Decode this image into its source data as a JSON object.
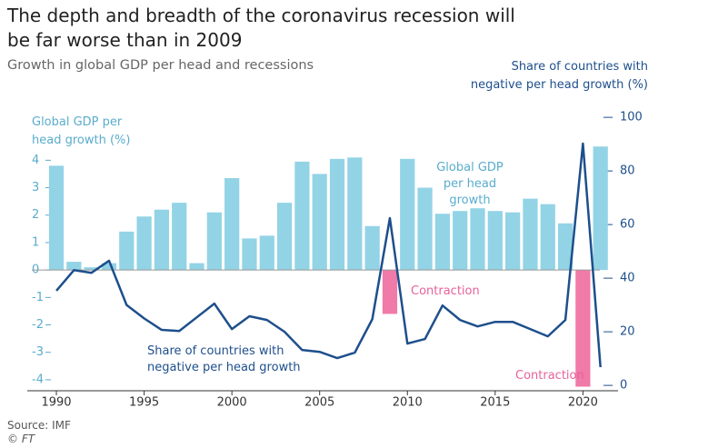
{
  "chart_data": {
    "type": "bar-line",
    "title": "The depth and breadth of the coronavirus recession will be far worse than in 2009",
    "subtitle": "Growth in global GDP per head and recessions",
    "y_axis_label": "Global GDP per head growth (%)",
    "y2_axis_label": "Share of countries with negative per head growth (%)",
    "source": "Source: IMF",
    "credit": "© FT",
    "annotations": [
      "Global GDP per head growth",
      "Contraction",
      "Contraction",
      "Share of countries with negative per head growth"
    ],
    "x": [
      1990,
      1991,
      1992,
      1993,
      1994,
      1995,
      1996,
      1997,
      1998,
      1999,
      2000,
      2001,
      2002,
      2003,
      2004,
      2005,
      2006,
      2007,
      2008,
      2009,
      2010,
      2011,
      2012,
      2013,
      2014,
      2015,
      2016,
      2017,
      2018,
      2019,
      2020,
      2021
    ],
    "series": [
      {
        "name": "Global GDP per head growth",
        "color": "#93d3e6",
        "negative_color": "#f07aa8",
        "values": [
          3.8,
          0.3,
          0.1,
          0.25,
          1.4,
          1.95,
          2.2,
          2.45,
          0.25,
          2.1,
          3.35,
          1.15,
          1.25,
          2.45,
          3.95,
          3.5,
          4.05,
          4.1,
          1.6,
          -1.6,
          4.05,
          3.0,
          2.05,
          2.15,
          2.25,
          2.15,
          2.1,
          2.6,
          2.4,
          1.7,
          -4.25,
          4.5
        ]
      },
      {
        "name": "Share of countries with negative per head growth",
        "color": "#1e4f8c",
        "axis": "y2",
        "values": [
          35.3,
          43,
          42,
          46.5,
          30,
          25,
          20.7,
          20.3,
          25.4,
          30.5,
          21,
          25.8,
          24.4,
          20,
          13.2,
          12.5,
          10.2,
          12.2,
          24.7,
          62.4,
          15.6,
          17.3,
          29.8,
          24.4,
          22,
          23.7,
          23.7,
          21,
          18.3,
          24.4,
          90.2,
          6.8
        ]
      }
    ],
    "xlim": [
      1988.6,
      2022.0
    ],
    "xticks": [
      1990,
      1995,
      2000,
      2005,
      2010,
      2015,
      2020
    ],
    "ylim": [
      -4.4,
      5.7
    ],
    "yticks": [
      -4,
      -3,
      -2,
      -1,
      0,
      1,
      2,
      3,
      4
    ],
    "y2lim": [
      -2,
      101.4
    ],
    "y2ticks": [
      0,
      20,
      40,
      60,
      80,
      100
    ]
  }
}
